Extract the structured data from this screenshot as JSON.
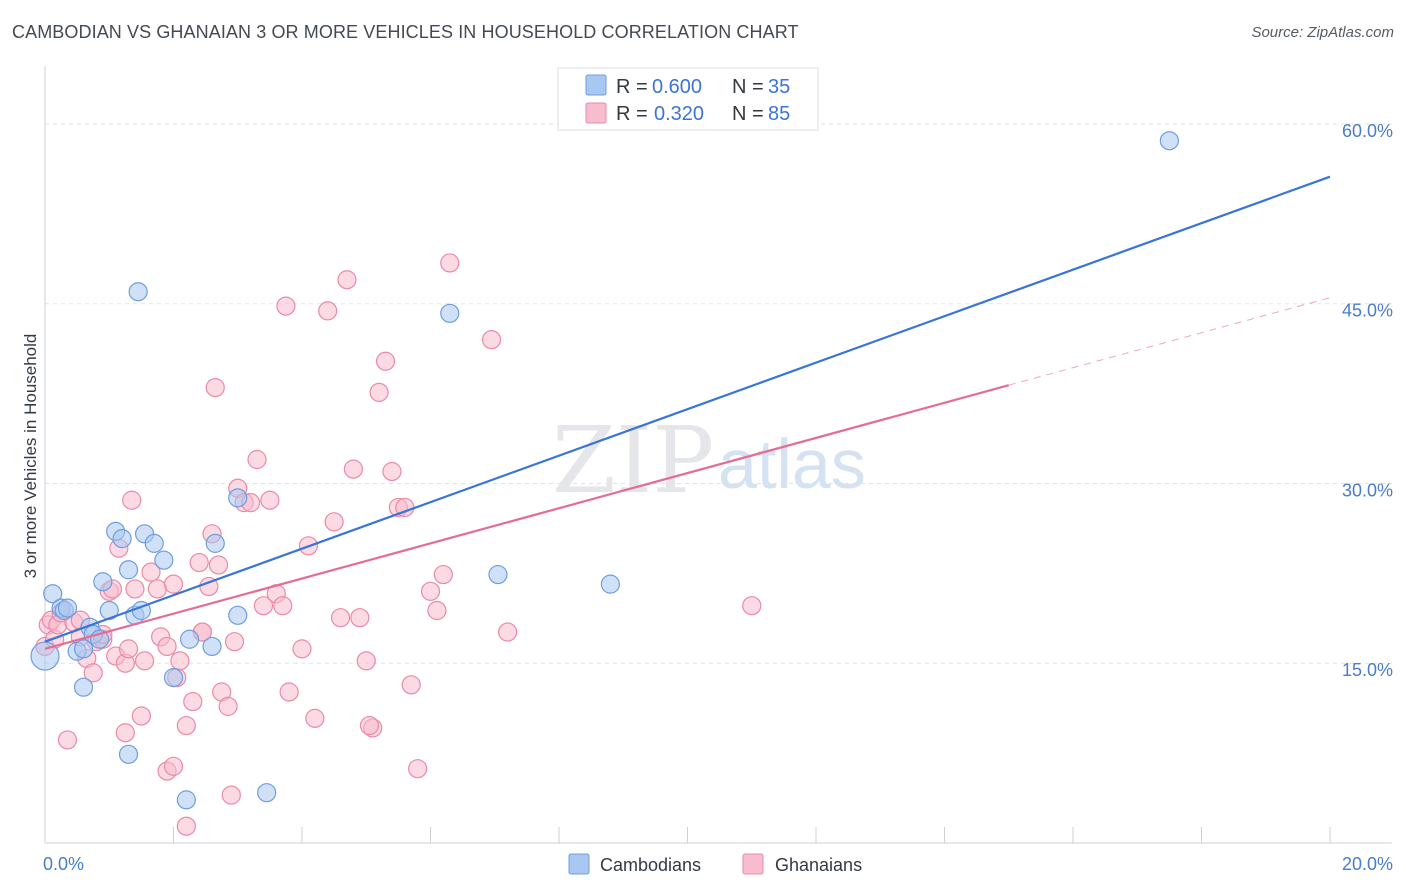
{
  "title": "CAMBODIAN VS GHANAIAN 3 OR MORE VEHICLES IN HOUSEHOLD CORRELATION CHART",
  "source": "Source: ZipAtlas.com",
  "watermark": {
    "zip": "ZIP",
    "atlas": "atlas"
  },
  "legend_stats": [
    {
      "r_label": "R =",
      "r_value": "0.600",
      "n_label": "N =",
      "n_value": "35",
      "color": "#a9c8f1",
      "stroke": "#6e9de0"
    },
    {
      "r_label": "R =",
      "r_value": "0.320",
      "n_label": "N =",
      "n_value": "85",
      "color": "#f7bccd",
      "stroke": "#e98aa6"
    }
  ],
  "bottom_legend": [
    {
      "label": "Cambodians",
      "color": "#a9c8f1",
      "stroke": "#6e9de0"
    },
    {
      "label": "Ghanaians",
      "color": "#f7bccd",
      "stroke": "#e98aa6"
    }
  ],
  "chart_data": {
    "type": "scatter",
    "title": "CAMBODIAN VS GHANAIAN 3 OR MORE VEHICLES IN HOUSEHOLD CORRELATION CHART",
    "xlabel": "",
    "ylabel": "3 or more Vehicles in Household",
    "xlim": [
      0,
      20
    ],
    "ylim": [
      0,
      64
    ],
    "x_tick_labels": [
      {
        "value": 0,
        "label": "0.0%"
      },
      {
        "value": 20,
        "label": "20.0%"
      }
    ],
    "y_tick_labels": [
      {
        "value": 15,
        "label": "15.0%"
      },
      {
        "value": 30,
        "label": "30.0%"
      },
      {
        "value": 45,
        "label": "45.0%"
      },
      {
        "value": 60,
        "label": "60.0%"
      }
    ],
    "grid": true,
    "legend_position": "top-center",
    "series": [
      {
        "name": "Cambodians",
        "color": "#a9c8f1",
        "stroke": "#6e9de0",
        "line_color": "#3875d7",
        "trend": {
          "x0": 0,
          "y0": 16.8,
          "x1": 20,
          "y1": 55.6
        },
        "points": [
          [
            0.0,
            15.6
          ],
          [
            0.12,
            20.8
          ],
          [
            0.25,
            19.6
          ],
          [
            0.3,
            19.4
          ],
          [
            0.35,
            19.6
          ],
          [
            0.5,
            16.0
          ],
          [
            0.6,
            13.0
          ],
          [
            0.7,
            18.0
          ],
          [
            0.75,
            17.4
          ],
          [
            0.85,
            17.0
          ],
          [
            0.9,
            21.8
          ],
          [
            1.0,
            19.4
          ],
          [
            1.1,
            26.0
          ],
          [
            1.2,
            25.4
          ],
          [
            1.3,
            22.8
          ],
          [
            1.4,
            19.0
          ],
          [
            1.5,
            19.4
          ],
          [
            1.55,
            25.8
          ],
          [
            1.45,
            46.0
          ],
          [
            1.7,
            25.0
          ],
          [
            1.85,
            23.6
          ],
          [
            2.0,
            13.8
          ],
          [
            2.25,
            17.0
          ],
          [
            2.6,
            16.4
          ],
          [
            2.65,
            25.0
          ],
          [
            3.0,
            28.8
          ],
          [
            3.0,
            19.0
          ],
          [
            1.3,
            7.4
          ],
          [
            2.2,
            3.6
          ],
          [
            3.45,
            4.2
          ],
          [
            6.3,
            44.2
          ],
          [
            7.05,
            22.4
          ],
          [
            8.8,
            21.6
          ],
          [
            17.5,
            58.6
          ],
          [
            0.6,
            16.2
          ]
        ]
      },
      {
        "name": "Ghanaians",
        "color": "#f7bccd",
        "stroke": "#e98aa6",
        "line_color": "#e46d94",
        "trend": {
          "x0": 0,
          "y0": 16.2,
          "x1": 15.0,
          "y1": 38.2
        },
        "trend_dashed": {
          "x0": 15.0,
          "y0": 38.2,
          "x1": 20,
          "y1": 45.5
        },
        "points": [
          [
            0.0,
            16.4
          ],
          [
            0.05,
            18.2
          ],
          [
            0.1,
            18.6
          ],
          [
            0.15,
            17.0
          ],
          [
            0.2,
            18.2
          ],
          [
            0.25,
            19.2
          ],
          [
            0.35,
            8.6
          ],
          [
            0.45,
            18.4
          ],
          [
            0.55,
            17.2
          ],
          [
            0.65,
            15.4
          ],
          [
            0.75,
            14.2
          ],
          [
            0.8,
            16.8
          ],
          [
            0.9,
            17.0
          ],
          [
            1.0,
            21.0
          ],
          [
            1.1,
            15.6
          ],
          [
            1.15,
            24.6
          ],
          [
            1.25,
            15.0
          ],
          [
            1.3,
            16.2
          ],
          [
            1.35,
            28.6
          ],
          [
            1.4,
            21.2
          ],
          [
            1.5,
            10.6
          ],
          [
            1.55,
            15.2
          ],
          [
            1.65,
            22.6
          ],
          [
            1.75,
            21.2
          ],
          [
            1.8,
            17.2
          ],
          [
            1.9,
            16.4
          ],
          [
            2.0,
            21.6
          ],
          [
            2.05,
            13.8
          ],
          [
            2.1,
            15.2
          ],
          [
            2.2,
            9.8
          ],
          [
            2.3,
            11.8
          ],
          [
            2.4,
            23.4
          ],
          [
            2.45,
            17.6
          ],
          [
            2.55,
            21.4
          ],
          [
            2.6,
            25.8
          ],
          [
            2.7,
            23.2
          ],
          [
            2.75,
            12.6
          ],
          [
            2.85,
            11.4
          ],
          [
            2.9,
            4.0
          ],
          [
            2.95,
            16.8
          ],
          [
            3.0,
            29.6
          ],
          [
            3.1,
            28.4
          ],
          [
            3.2,
            28.4
          ],
          [
            3.3,
            32.0
          ],
          [
            3.4,
            19.8
          ],
          [
            3.5,
            28.6
          ],
          [
            3.6,
            20.8
          ],
          [
            3.7,
            19.8
          ],
          [
            3.8,
            12.6
          ],
          [
            3.75,
            44.8
          ],
          [
            4.0,
            16.2
          ],
          [
            4.1,
            24.8
          ],
          [
            4.2,
            10.4
          ],
          [
            4.4,
            44.4
          ],
          [
            4.5,
            26.8
          ],
          [
            4.6,
            18.8
          ],
          [
            4.7,
            47.0
          ],
          [
            4.8,
            31.2
          ],
          [
            4.9,
            18.8
          ],
          [
            5.0,
            15.2
          ],
          [
            5.1,
            9.6
          ],
          [
            5.2,
            37.6
          ],
          [
            5.3,
            40.2
          ],
          [
            5.4,
            31.0
          ],
          [
            5.5,
            28.0
          ],
          [
            5.6,
            28.0
          ],
          [
            5.7,
            13.2
          ],
          [
            5.8,
            6.2
          ],
          [
            6.0,
            21.0
          ],
          [
            6.1,
            19.4
          ],
          [
            6.2,
            22.4
          ],
          [
            6.3,
            48.4
          ],
          [
            6.95,
            42.0
          ],
          [
            7.2,
            17.6
          ],
          [
            11.0,
            19.8
          ],
          [
            1.9,
            6.0
          ],
          [
            2.0,
            6.4
          ],
          [
            2.2,
            1.4
          ],
          [
            2.65,
            38.0
          ],
          [
            1.25,
            9.2
          ],
          [
            0.55,
            18.6
          ],
          [
            1.05,
            21.2
          ],
          [
            2.45,
            17.6
          ],
          [
            0.9,
            17.4
          ],
          [
            5.05,
            9.8
          ]
        ]
      }
    ]
  }
}
